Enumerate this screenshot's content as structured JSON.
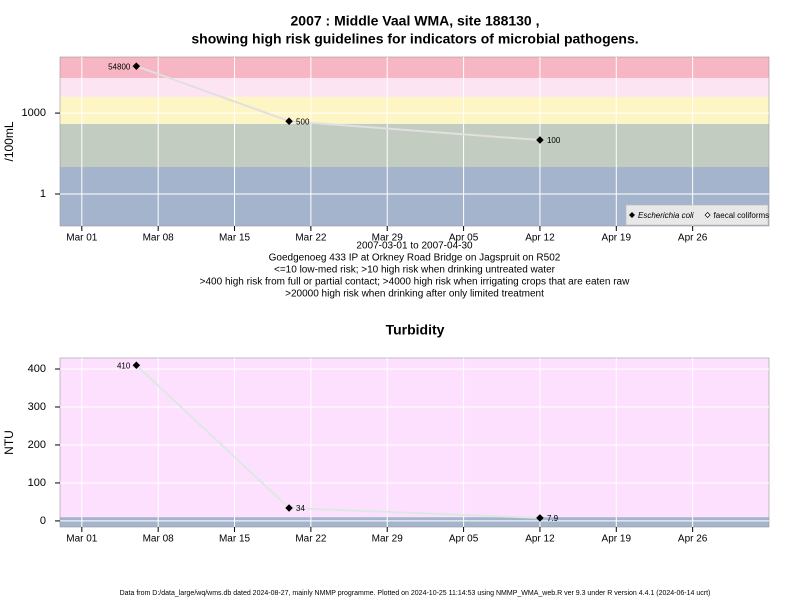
{
  "chart_data": [
    {
      "type": "line",
      "title": "2007 : Middle Vaal WMA, site 188130 ,",
      "subtitle": "showing high risk guidelines for indicators of microbial pathogens.",
      "notes": [
        "2007-03-01 to 2007-04-30",
        "Goedgenoeg 433 IP at Orkney Road Bridge on Jagspruit on R502",
        "<=10 low-med risk; >10 high risk when drinking untreated water",
        ">400 high risk from full or partial contact; >4000 high risk when irrigating crops that are eaten raw",
        ">20000 high risk when drinking after only limited treatment"
      ],
      "y_label": "/100mL",
      "log_y": true,
      "x": [
        "2007-03-06",
        "2007-03-20",
        "2007-04-12"
      ],
      "xlim": [
        "2007-02-27",
        "2007-05-03"
      ],
      "xticks": [
        {
          "value": "2007-03-01",
          "label": "Mar 01"
        },
        {
          "value": "2007-03-08",
          "label": "Mar 08"
        },
        {
          "value": "2007-03-15",
          "label": "Mar 15"
        },
        {
          "value": "2007-03-22",
          "label": "Mar 22"
        },
        {
          "value": "2007-03-29",
          "label": "Mar 29"
        },
        {
          "value": "2007-04-05",
          "label": "Apr 05"
        },
        {
          "value": "2007-04-12",
          "label": "Apr 12"
        },
        {
          "value": "2007-04-19",
          "label": "Apr 19"
        },
        {
          "value": "2007-04-26",
          "label": "Apr 26"
        }
      ],
      "ylim": [
        0.065,
        120000
      ],
      "yticks": [
        1,
        1000
      ],
      "band_edges": [
        10,
        400,
        4000,
        20000
      ],
      "band_colors": [
        "#a3b4cc",
        "#c3ccc0",
        "#fdf5c3",
        "#fde4f3",
        "#f7b6c4"
      ],
      "grid": true,
      "line_color": "#e0e0e0",
      "legend": "bottom right",
      "series": [
        {
          "name": "Escherichia coli",
          "color": "#000000",
          "marker": "filled",
          "font_style": "italic",
          "values": [
            54800,
            500,
            100
          ]
        },
        {
          "name": "faecal coliforms",
          "color": "#000000",
          "marker": "open",
          "values": [
            null,
            null,
            null
          ]
        }
      ]
    },
    {
      "type": "line",
      "title": "Turbidity",
      "y_label": "NTU",
      "log_y": false,
      "x": [
        "2007-03-06",
        "2007-03-20",
        "2007-04-12"
      ],
      "xlim": [
        "2007-02-27",
        "2007-05-03"
      ],
      "xticks": [
        {
          "value": "2007-03-01",
          "label": "Mar 01"
        },
        {
          "value": "2007-03-08",
          "label": "Mar 08"
        },
        {
          "value": "2007-03-15",
          "label": "Mar 15"
        },
        {
          "value": "2007-03-22",
          "label": "Mar 22"
        },
        {
          "value": "2007-03-29",
          "label": "Mar 29"
        },
        {
          "value": "2007-04-05",
          "label": "Apr 05"
        },
        {
          "value": "2007-04-12",
          "label": "Apr 12"
        },
        {
          "value": "2007-04-19",
          "label": "Apr 19"
        },
        {
          "value": "2007-04-26",
          "label": "Apr 26"
        }
      ],
      "ylim": [
        -16,
        429
      ],
      "yticks": [
        0,
        100,
        200,
        300,
        400
      ],
      "band_edges": [
        10
      ],
      "band_colors": [
        "#a3b4cc",
        "#fde0fd"
      ],
      "grid": true,
      "line_color": "#dde8e4",
      "series": [
        {
          "color": "#000000",
          "marker": "filled",
          "values": [
            410,
            34,
            7.9
          ]
        }
      ]
    }
  ],
  "footer": "Data from D:/data_large/wq/wms.db dated 2024-08-27, mainly NMMP programme. Plotted on 2024-10-25 11:14:53 using NMMP_WMA_web.R ver 9.3 under R version 4.4.1 (2024-06-14 ucrt)"
}
